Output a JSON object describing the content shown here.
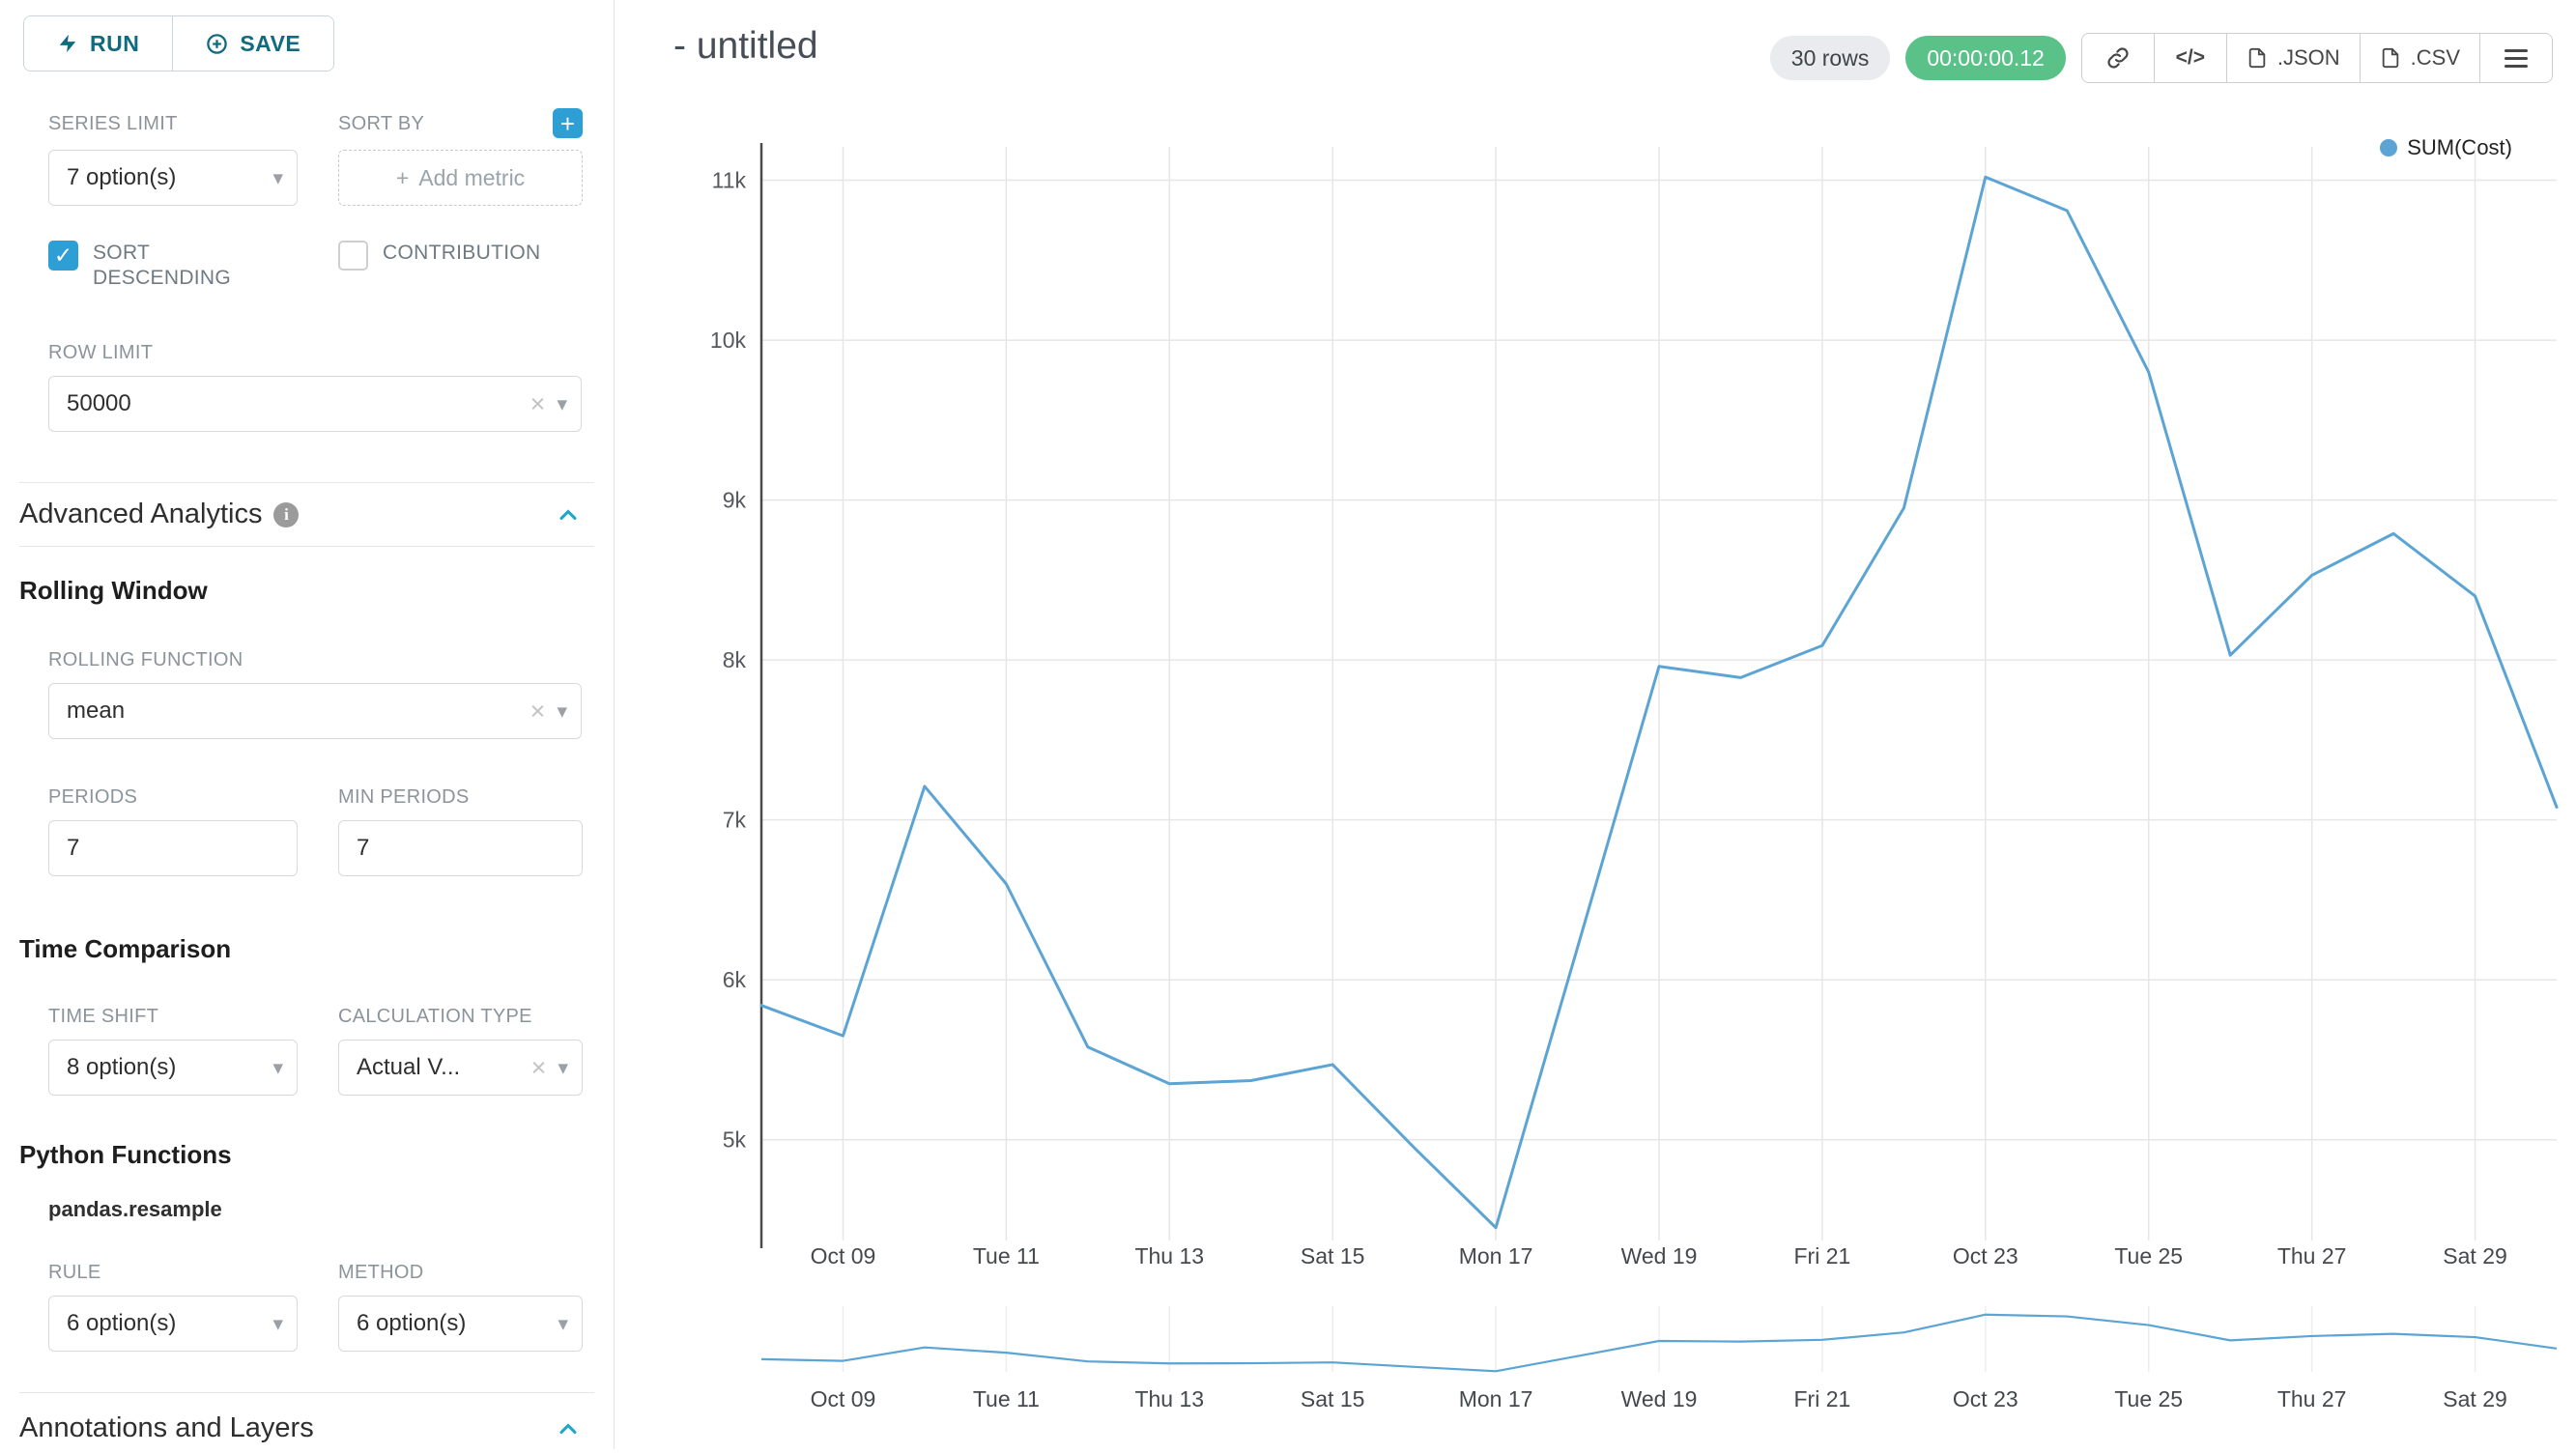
{
  "header": {
    "title": "- untitled"
  },
  "sidebar": {
    "run_label": "RUN",
    "save_label": "SAVE",
    "series_limit": {
      "label": "SERIES LIMIT",
      "value": "7 option(s)"
    },
    "sort_by": {
      "label": "SORT BY",
      "placeholder": "Add metric"
    },
    "sort_descending": {
      "label": "SORT DESCENDING",
      "checked": true
    },
    "contribution": {
      "label": "CONTRIBUTION",
      "checked": false
    },
    "row_limit": {
      "label": "ROW LIMIT",
      "value": "50000"
    },
    "advanced_analytics": {
      "title": "Advanced Analytics"
    },
    "rolling_window": {
      "title": "Rolling Window",
      "rolling_function": {
        "label": "ROLLING FUNCTION",
        "value": "mean"
      },
      "periods": {
        "label": "PERIODS",
        "value": "7"
      },
      "min_periods": {
        "label": "MIN PERIODS",
        "value": "7"
      }
    },
    "time_comparison": {
      "title": "Time Comparison",
      "time_shift": {
        "label": "TIME SHIFT",
        "value": "8 option(s)"
      },
      "calculation_type": {
        "label": "CALCULATION TYPE",
        "value": "Actual V..."
      }
    },
    "python_functions": {
      "title": "Python Functions",
      "subtitle": "pandas.resample",
      "rule": {
        "label": "RULE",
        "value": "6 option(s)"
      },
      "method": {
        "label": "METHOD",
        "value": "6 option(s)"
      }
    },
    "annotations": {
      "title": "Annotations and Layers"
    }
  },
  "toolbar": {
    "rows_badge": "30 rows",
    "timer_badge": "00:00:00.12",
    "json_label": ".JSON",
    "csv_label": ".CSV"
  },
  "icons": {
    "caret_down": "▾",
    "clear": "×",
    "plus": "+",
    "code": "</>"
  },
  "colors": {
    "accent": "#20A7C9",
    "add_button_blue": "#2E9FD4",
    "timer_green": "#5AC189",
    "series_line": "#5BA4D4"
  },
  "chart_data": {
    "type": "line",
    "title": "",
    "legend": [
      "SUM(Cost)"
    ],
    "legend_position": "top-right",
    "grid": true,
    "series_color": "#5BA4D4",
    "x": [
      "Oct 08",
      "Oct 09",
      "Oct 10",
      "Oct 11",
      "Oct 12",
      "Oct 13",
      "Oct 14",
      "Oct 15",
      "Oct 16",
      "Oct 17",
      "Oct 18",
      "Oct 19",
      "Oct 20",
      "Oct 21",
      "Oct 22",
      "Oct 23",
      "Oct 24",
      "Oct 25",
      "Oct 26",
      "Oct 27",
      "Oct 28",
      "Oct 29",
      "Oct 30"
    ],
    "values": [
      5840,
      5650,
      7210,
      6600,
      5580,
      5350,
      5370,
      5470,
      4950,
      4450,
      6200,
      7960,
      7890,
      8090,
      8950,
      11020,
      10810,
      9800,
      8030,
      8530,
      8790,
      8400,
      7080
    ],
    "x_tick_indices": [
      1,
      3,
      5,
      7,
      9,
      11,
      13,
      15,
      17,
      19,
      21
    ],
    "x_tick_labels": [
      "Oct 09",
      "Tue 11",
      "Thu 13",
      "Sat 15",
      "Mon 17",
      "Wed 19",
      "Fri 21",
      "Oct 23",
      "Tue 25",
      "Thu 27",
      "Sat 29"
    ],
    "y_ticks": [
      5000,
      6000,
      7000,
      8000,
      9000,
      10000,
      11000
    ],
    "y_tick_labels": [
      "5k",
      "6k",
      "7k",
      "8k",
      "9k",
      "10k",
      "11k"
    ],
    "ylim": [
      4370,
      11100
    ],
    "xlabel": "",
    "ylabel": ""
  }
}
